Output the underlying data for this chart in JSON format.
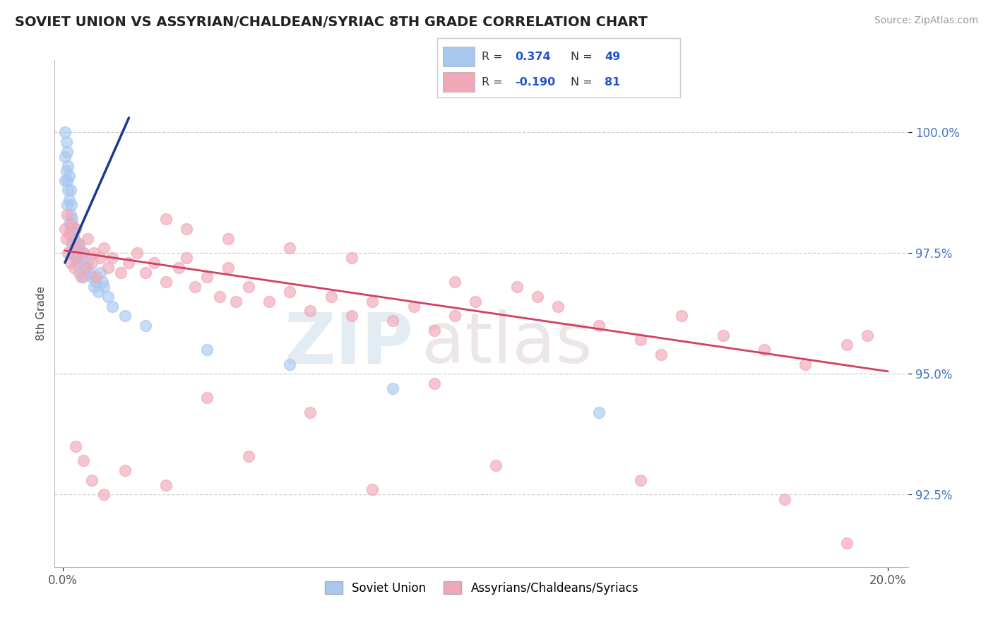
{
  "title": "SOVIET UNION VS ASSYRIAN/CHALDEAN/SYRIAC 8TH GRADE CORRELATION CHART",
  "source_text": "Source: ZipAtlas.com",
  "ylabel": "8th Grade",
  "xlim": [
    0.0,
    20.0
  ],
  "ylim": [
    91.0,
    101.5
  ],
  "x_ticks": [
    0.0,
    20.0
  ],
  "x_tick_labels": [
    "0.0%",
    "20.0%"
  ],
  "y_ticks": [
    92.5,
    95.0,
    97.5,
    100.0
  ],
  "y_tick_labels": [
    "92.5%",
    "95.0%",
    "97.5%",
    "100.0%"
  ],
  "blue_r": "0.374",
  "blue_n": "49",
  "pink_r": "-0.190",
  "pink_n": "81",
  "legend_label_blue": "Soviet Union",
  "legend_label_pink": "Assyrians/Chaldeans/Syriacs",
  "blue_color": "#a8c8f0",
  "pink_color": "#f0a8b8",
  "blue_line_color": "#1a3a8c",
  "pink_line_color": "#d04060",
  "watermark_zip": "ZIP",
  "watermark_atlas": "atlas",
  "blue_line_x": [
    0.05,
    1.6
  ],
  "blue_line_y": [
    97.3,
    100.3
  ],
  "pink_line_x": [
    0.05,
    20.0
  ],
  "pink_line_y": [
    97.55,
    95.05
  ],
  "blue_x": [
    0.05,
    0.05,
    0.05,
    0.08,
    0.08,
    0.1,
    0.1,
    0.1,
    0.12,
    0.12,
    0.15,
    0.15,
    0.15,
    0.18,
    0.18,
    0.2,
    0.2,
    0.2,
    0.22,
    0.25,
    0.25,
    0.28,
    0.3,
    0.3,
    0.35,
    0.35,
    0.4,
    0.4,
    0.45,
    0.5,
    0.5,
    0.55,
    0.6,
    0.65,
    0.7,
    0.75,
    0.8,
    0.85,
    0.9,
    0.95,
    1.0,
    1.1,
    1.2,
    1.5,
    2.0,
    3.5,
    5.5,
    8.0,
    13.0
  ],
  "blue_y": [
    100.0,
    99.5,
    99.0,
    99.8,
    99.2,
    99.6,
    99.0,
    98.5,
    99.3,
    98.8,
    99.1,
    98.6,
    98.1,
    98.8,
    98.3,
    98.5,
    98.0,
    97.7,
    98.2,
    97.9,
    97.5,
    97.8,
    98.0,
    97.4,
    97.7,
    97.3,
    97.6,
    97.1,
    97.4,
    97.5,
    97.0,
    97.2,
    97.3,
    97.1,
    97.0,
    96.8,
    96.9,
    96.7,
    97.1,
    96.9,
    96.8,
    96.6,
    96.4,
    96.2,
    96.0,
    95.5,
    95.2,
    94.7,
    94.2
  ],
  "pink_x": [
    0.05,
    0.08,
    0.1,
    0.12,
    0.15,
    0.18,
    0.2,
    0.25,
    0.28,
    0.3,
    0.35,
    0.4,
    0.45,
    0.5,
    0.55,
    0.6,
    0.7,
    0.75,
    0.8,
    0.9,
    1.0,
    1.1,
    1.2,
    1.4,
    1.6,
    1.8,
    2.0,
    2.2,
    2.5,
    2.8,
    3.0,
    3.2,
    3.5,
    3.8,
    4.0,
    4.2,
    4.5,
    5.0,
    5.5,
    6.0,
    6.5,
    7.0,
    7.5,
    8.0,
    8.5,
    9.0,
    9.5,
    10.0,
    11.0,
    12.0,
    13.0,
    14.0,
    15.0,
    16.0,
    17.0,
    18.0,
    19.0,
    19.5,
    2.5,
    3.0,
    4.0,
    5.5,
    7.0,
    9.5,
    11.5,
    14.5,
    0.3,
    0.5,
    0.7,
    1.0,
    1.5,
    2.5,
    4.5,
    7.5,
    10.5,
    14.0,
    17.5,
    3.5,
    6.0,
    9.0,
    19.0
  ],
  "pink_y": [
    98.0,
    97.8,
    98.3,
    97.5,
    97.9,
    97.3,
    98.1,
    97.6,
    97.2,
    98.0,
    97.4,
    97.7,
    97.0,
    97.5,
    97.2,
    97.8,
    97.3,
    97.5,
    97.0,
    97.4,
    97.6,
    97.2,
    97.4,
    97.1,
    97.3,
    97.5,
    97.1,
    97.3,
    96.9,
    97.2,
    97.4,
    96.8,
    97.0,
    96.6,
    97.2,
    96.5,
    96.8,
    96.5,
    96.7,
    96.3,
    96.6,
    96.2,
    96.5,
    96.1,
    96.4,
    95.9,
    96.2,
    96.5,
    96.8,
    96.4,
    96.0,
    95.7,
    96.2,
    95.8,
    95.5,
    95.2,
    95.6,
    95.8,
    98.2,
    98.0,
    97.8,
    97.6,
    97.4,
    96.9,
    96.6,
    95.4,
    93.5,
    93.2,
    92.8,
    92.5,
    93.0,
    92.7,
    93.3,
    92.6,
    93.1,
    92.8,
    92.4,
    94.5,
    94.2,
    94.8,
    91.5
  ]
}
